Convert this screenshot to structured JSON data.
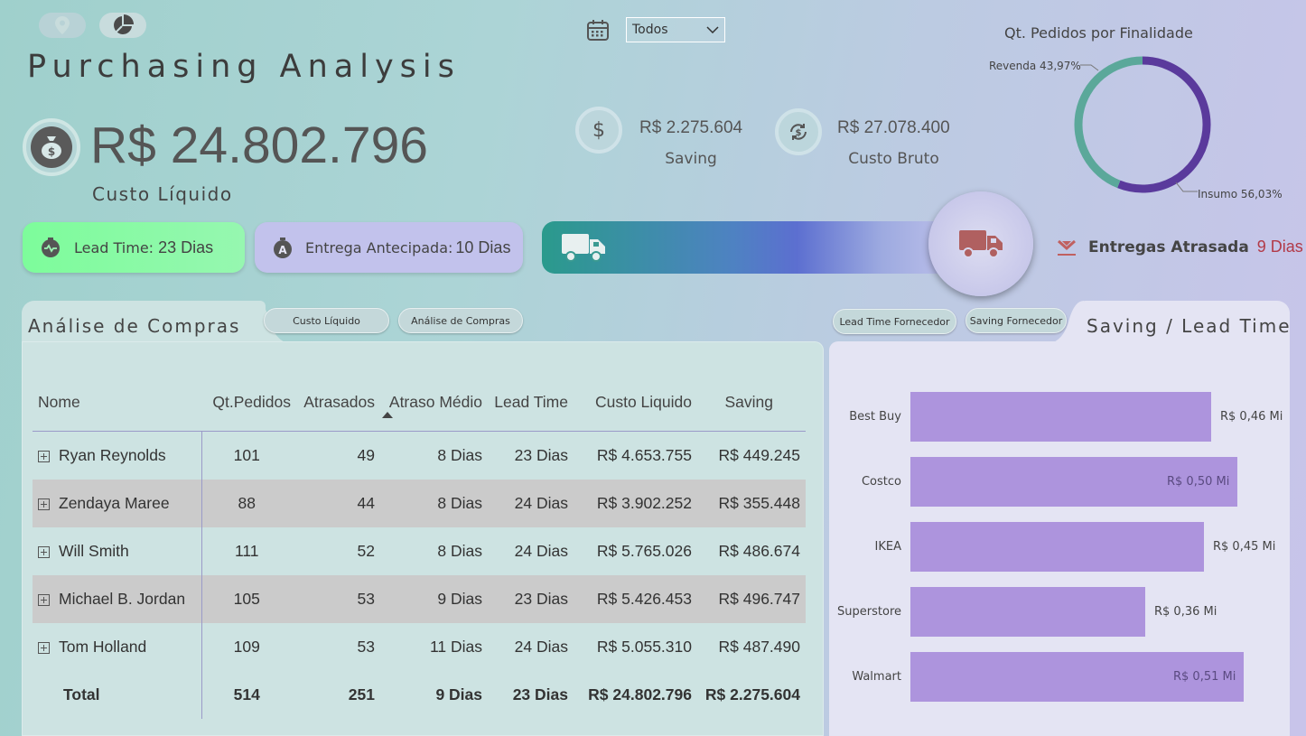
{
  "header": {
    "title": "Purchasing Analysis",
    "icons": [
      "location-pin-icon",
      "pie-chart-icon",
      "calendar-icon"
    ],
    "period_dropdown": {
      "selected": "Todos"
    }
  },
  "main_kpi": {
    "value": "R$ 24.802.796",
    "label": "Custo Líquido"
  },
  "kpis": [
    {
      "value": "R$ 2.275.604",
      "label": "Saving",
      "icon": "dollar-icon"
    },
    {
      "value": "R$ 27.078.400",
      "label": "Custo Bruto",
      "icon": "exchange-icon"
    }
  ],
  "donut": {
    "title": "Qt. Pedidos por Finalidade",
    "segments": [
      {
        "label": "Revenda 43,97%",
        "percent": 43.97,
        "color": "#5ba89a"
      },
      {
        "label": "Insumo 56,03%",
        "percent": 56.03,
        "color": "#5a3a9c"
      }
    ]
  },
  "lead_time": {
    "label": "Lead Time:",
    "value": "23 Dias"
  },
  "entrega_antecipada": {
    "label": "Entrega Antecipada:",
    "value": "10 Dias"
  },
  "entregas_atrasadas": {
    "label": "Entregas Atrasada",
    "value": "9 Dias"
  },
  "left_panel": {
    "title": "Análise de Compras",
    "buttons": [
      "Custo Líquido",
      "Análise de Compras"
    ],
    "columns": [
      "Nome",
      "Qt.Pedidos",
      "Atrasados",
      "Atraso Médio",
      "Lead Time",
      "Custo Liquido",
      "Saving"
    ],
    "rows": [
      [
        "Ryan Reynolds",
        "101",
        "49",
        "8 Dias",
        "23 Dias",
        "R$ 4.653.755",
        "R$ 449.245"
      ],
      [
        "Zendaya Maree",
        "88",
        "44",
        "8 Dias",
        "24 Dias",
        "R$ 3.902.252",
        "R$ 355.448"
      ],
      [
        "Will Smith",
        "111",
        "52",
        "8 Dias",
        "24 Dias",
        "R$ 5.765.026",
        "R$ 486.674"
      ],
      [
        "Michael B. Jordan",
        "105",
        "53",
        "9 Dias",
        "23 Dias",
        "R$ 5.426.453",
        "R$ 496.747"
      ],
      [
        "Tom Holland",
        "109",
        "53",
        "11 Dias",
        "24 Dias",
        "R$ 5.055.310",
        "R$ 487.490"
      ]
    ],
    "total": [
      "Total",
      "514",
      "251",
      "9 Dias",
      "23 Dias",
      "R$ 24.802.796",
      "R$ 2.275.604"
    ]
  },
  "right_panel": {
    "title": "Saving / Lead Time",
    "buttons": [
      "Lead Time Fornecedor",
      "Saving Fornecedor"
    ]
  },
  "chart_data": {
    "type": "bar",
    "orientation": "horizontal",
    "categories": [
      "Best Buy",
      "Costco",
      "IKEA",
      "Superstore",
      "Walmart"
    ],
    "values": [
      0.46,
      0.5,
      0.45,
      0.36,
      0.51
    ],
    "labels": [
      "R$ 0,46 Mi",
      "R$ 0,50 Mi",
      "R$ 0,45 Mi",
      "R$ 0,36 Mi",
      "R$ 0,51 Mi"
    ],
    "color": "#ad94dd",
    "xlim": [
      0,
      0.56
    ]
  }
}
